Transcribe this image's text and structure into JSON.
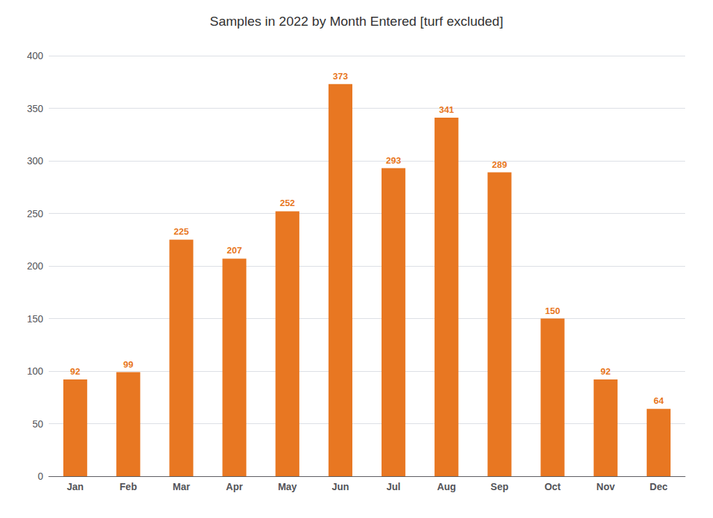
{
  "chart_data": {
    "type": "bar",
    "title": "Samples in 2022 by Month Entered [turf excluded]",
    "categories": [
      "Jan",
      "Feb",
      "Mar",
      "Apr",
      "May",
      "Jun",
      "Jul",
      "Aug",
      "Sep",
      "Oct",
      "Nov",
      "Dec"
    ],
    "values": [
      92,
      99,
      225,
      207,
      252,
      373,
      293,
      341,
      289,
      150,
      92,
      64
    ],
    "color": "#E87722",
    "ylim": [
      0,
      400
    ],
    "yticks": [
      0,
      50,
      100,
      150,
      200,
      250,
      300,
      350,
      400
    ],
    "grid": true,
    "data_labels": true
  }
}
